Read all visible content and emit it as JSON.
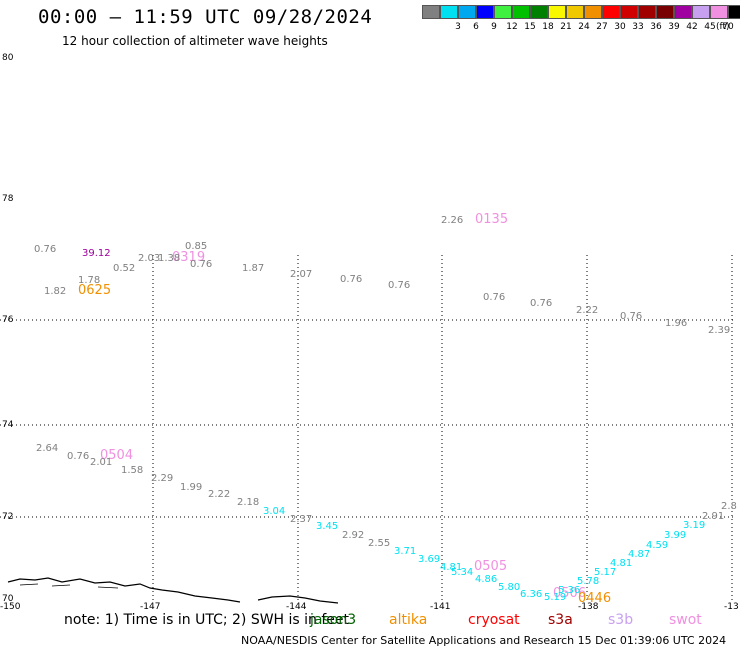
{
  "header": {
    "title": "00:00 – 11:59 UTC 09/28/2024",
    "subtitle": "12 hour collection of altimeter wave heights"
  },
  "legend": {
    "unit": "(ft)",
    "swatches": [
      {
        "color": "#808080",
        "label": ""
      },
      {
        "color": "#00e0f0",
        "label": "3"
      },
      {
        "color": "#00a8f0",
        "label": "6"
      },
      {
        "color": "#0000ff",
        "label": "9"
      },
      {
        "color": "#40f040",
        "label": "12"
      },
      {
        "color": "#00c000",
        "label": "15"
      },
      {
        "color": "#008000",
        "label": "18"
      },
      {
        "color": "#f8f800",
        "label": "21"
      },
      {
        "color": "#f0c800",
        "label": "24"
      },
      {
        "color": "#f09000",
        "label": "27"
      },
      {
        "color": "#ff0000",
        "label": "30"
      },
      {
        "color": "#d00000",
        "label": "33"
      },
      {
        "color": "#a00000",
        "label": "36"
      },
      {
        "color": "#780000",
        "label": "39"
      },
      {
        "color": "#a000a0",
        "label": "42"
      },
      {
        "color": "#c8a0f0",
        "label": "45"
      },
      {
        "color": "#f090e0",
        "label": "70"
      },
      {
        "color": "#000000",
        "label": ""
      }
    ]
  },
  "map": {
    "lat_labels": [
      "80",
      "78",
      "76",
      "74",
      "72",
      "70"
    ],
    "lon_labels": [
      "-150",
      "-147",
      "-144",
      "-141",
      "-138",
      "-13"
    ],
    "track_times": [
      {
        "text": "0625",
        "color": "#f09000"
      },
      {
        "text": "0319",
        "color": "#f090e0"
      },
      {
        "text": "0135",
        "color": "#f090e0"
      },
      {
        "text": "0504",
        "color": "#f090e0"
      },
      {
        "text": "0505",
        "color": "#f090e0"
      },
      {
        "text": "0506",
        "color": "#f090e0"
      },
      {
        "text": "0446",
        "color": "#f09000"
      }
    ],
    "wave_heights": [
      {
        "text": "0.76",
        "color": "#808080"
      },
      {
        "text": "39.12",
        "color": "#a000a0"
      },
      {
        "text": "1.78",
        "color": "#808080"
      },
      {
        "text": "0.52",
        "color": "#808080"
      },
      {
        "text": "1.82",
        "color": "#808080"
      },
      {
        "text": "2.03",
        "color": "#808080"
      },
      {
        "text": "1.38",
        "color": "#808080"
      },
      {
        "text": "0.85",
        "color": "#808080"
      },
      {
        "text": "0.76",
        "color": "#808080"
      },
      {
        "text": "1.87",
        "color": "#808080"
      },
      {
        "text": "2.07",
        "color": "#808080"
      },
      {
        "text": "0.76",
        "color": "#808080"
      },
      {
        "text": "0.76",
        "color": "#808080"
      },
      {
        "text": "2.26",
        "color": "#808080"
      },
      {
        "text": "0.76",
        "color": "#808080"
      },
      {
        "text": "0.76",
        "color": "#808080"
      },
      {
        "text": "2.22",
        "color": "#808080"
      },
      {
        "text": "0.76",
        "color": "#808080"
      },
      {
        "text": "1.96",
        "color": "#808080"
      },
      {
        "text": "2.39",
        "color": "#808080"
      },
      {
        "text": "2.64",
        "color": "#808080"
      },
      {
        "text": "0.76",
        "color": "#808080"
      },
      {
        "text": "2.01",
        "color": "#808080"
      },
      {
        "text": "1.58",
        "color": "#808080"
      },
      {
        "text": "2.29",
        "color": "#808080"
      },
      {
        "text": "1.99",
        "color": "#808080"
      },
      {
        "text": "2.22",
        "color": "#808080"
      },
      {
        "text": "2.18",
        "color": "#808080"
      },
      {
        "text": "3.04",
        "color": "#00e0f0"
      },
      {
        "text": "2.37",
        "color": "#808080"
      },
      {
        "text": "3.45",
        "color": "#00e0f0"
      },
      {
        "text": "2.92",
        "color": "#808080"
      },
      {
        "text": "2.55",
        "color": "#808080"
      },
      {
        "text": "3.71",
        "color": "#00e0f0"
      },
      {
        "text": "3.69",
        "color": "#00e0f0"
      },
      {
        "text": "4.81",
        "color": "#00e0f0"
      },
      {
        "text": "5.34",
        "color": "#00e0f0"
      },
      {
        "text": "4.86",
        "color": "#00e0f0"
      },
      {
        "text": "5.80",
        "color": "#00e0f0"
      },
      {
        "text": "6.36",
        "color": "#00e0f0"
      },
      {
        "text": "5.19",
        "color": "#00e0f0"
      },
      {
        "text": "5.36",
        "color": "#00e0f0"
      },
      {
        "text": "5.78",
        "color": "#00e0f0"
      },
      {
        "text": "5.17",
        "color": "#00e0f0"
      },
      {
        "text": "4.81",
        "color": "#00e0f0"
      },
      {
        "text": "4.87",
        "color": "#00e0f0"
      },
      {
        "text": "4.59",
        "color": "#00e0f0"
      },
      {
        "text": "3.99",
        "color": "#00e0f0"
      },
      {
        "text": "3.19",
        "color": "#00e0f0"
      },
      {
        "text": "2.91",
        "color": "#808080"
      },
      {
        "text": "2.8",
        "color": "#808080"
      }
    ]
  },
  "note": {
    "text": "note:  1) Time is in UTC;  2) SWH is in feet",
    "satellites": [
      {
        "name": "jason3",
        "color": "#006400"
      },
      {
        "name": "altika",
        "color": "#f09000"
      },
      {
        "name": "cryosat",
        "color": "#ff0000"
      },
      {
        "name": "s3a",
        "color": "#a00000"
      },
      {
        "name": "s3b",
        "color": "#c8a0f0"
      },
      {
        "name": "swot",
        "color": "#f090e0"
      }
    ]
  },
  "footer": {
    "text": "NOAA/NESDIS Center for Satellite Applications and Research    15 Dec 01:39:06 UTC 2024"
  }
}
